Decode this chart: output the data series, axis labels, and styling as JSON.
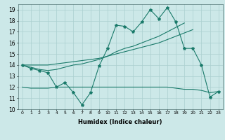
{
  "xlabel": "Humidex (Indice chaleur)",
  "x": [
    0,
    1,
    2,
    3,
    4,
    5,
    6,
    7,
    8,
    9,
    10,
    11,
    12,
    13,
    14,
    15,
    16,
    17,
    18,
    19,
    20,
    21,
    22,
    23
  ],
  "line1": [
    14.0,
    13.7,
    13.5,
    13.3,
    12.0,
    12.4,
    11.5,
    10.4,
    11.5,
    13.9,
    15.5,
    17.6,
    17.5,
    17.0,
    17.9,
    19.0,
    18.2,
    19.2,
    17.9,
    15.5,
    15.5,
    14.0,
    11.1,
    11.6
  ],
  "line2": [
    14.0,
    13.8,
    13.6,
    13.5,
    13.6,
    13.8,
    14.0,
    14.1,
    14.3,
    14.5,
    14.8,
    15.2,
    15.5,
    15.7,
    16.0,
    16.3,
    16.6,
    17.0,
    17.4,
    17.8,
    null,
    null,
    null,
    null
  ],
  "line3": [
    14.0,
    14.0,
    14.0,
    14.0,
    14.1,
    14.2,
    14.3,
    14.4,
    14.5,
    14.6,
    14.8,
    15.0,
    15.2,
    15.4,
    15.6,
    15.8,
    16.0,
    16.3,
    16.6,
    16.9,
    17.2,
    null,
    null,
    null
  ],
  "line4": [
    12.0,
    11.9,
    11.9,
    11.9,
    12.0,
    12.0,
    12.0,
    12.0,
    12.0,
    12.0,
    12.0,
    12.0,
    12.0,
    12.0,
    12.0,
    12.0,
    12.0,
    12.0,
    11.9,
    11.8,
    11.8,
    11.7,
    11.5,
    11.6
  ],
  "ylim": [
    10,
    19.5
  ],
  "xlim": [
    -0.5,
    23.5
  ],
  "color": "#1a7a6a",
  "bg_color": "#cce8e8",
  "grid_color": "#aacfcf"
}
